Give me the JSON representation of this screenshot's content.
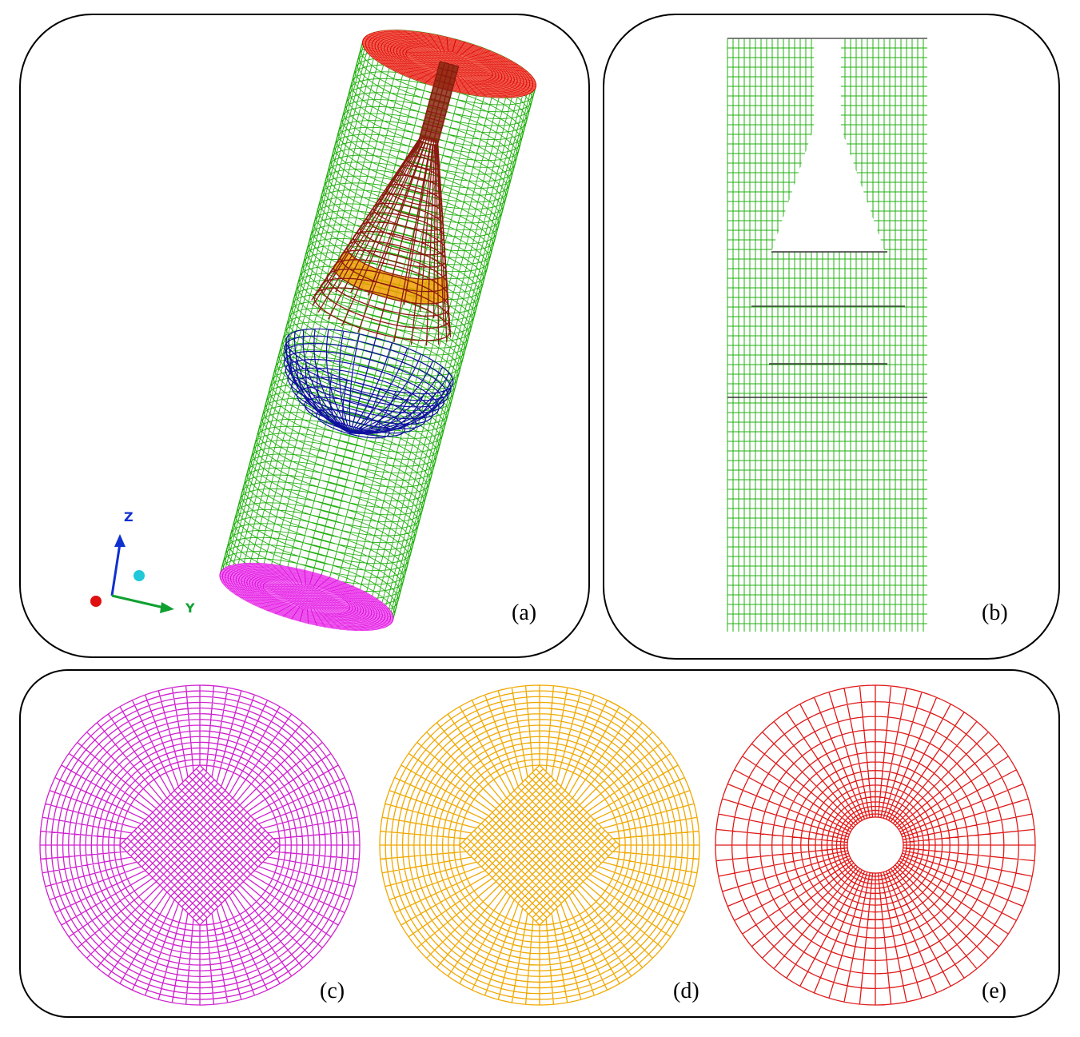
{
  "panels": [
    {
      "label": "(a)"
    },
    {
      "label": "(b)"
    },
    {
      "label": "(c)"
    },
    {
      "label": "(d)"
    },
    {
      "label": "(e)"
    }
  ],
  "axes": {
    "z": "Z",
    "y": "Y"
  }
}
